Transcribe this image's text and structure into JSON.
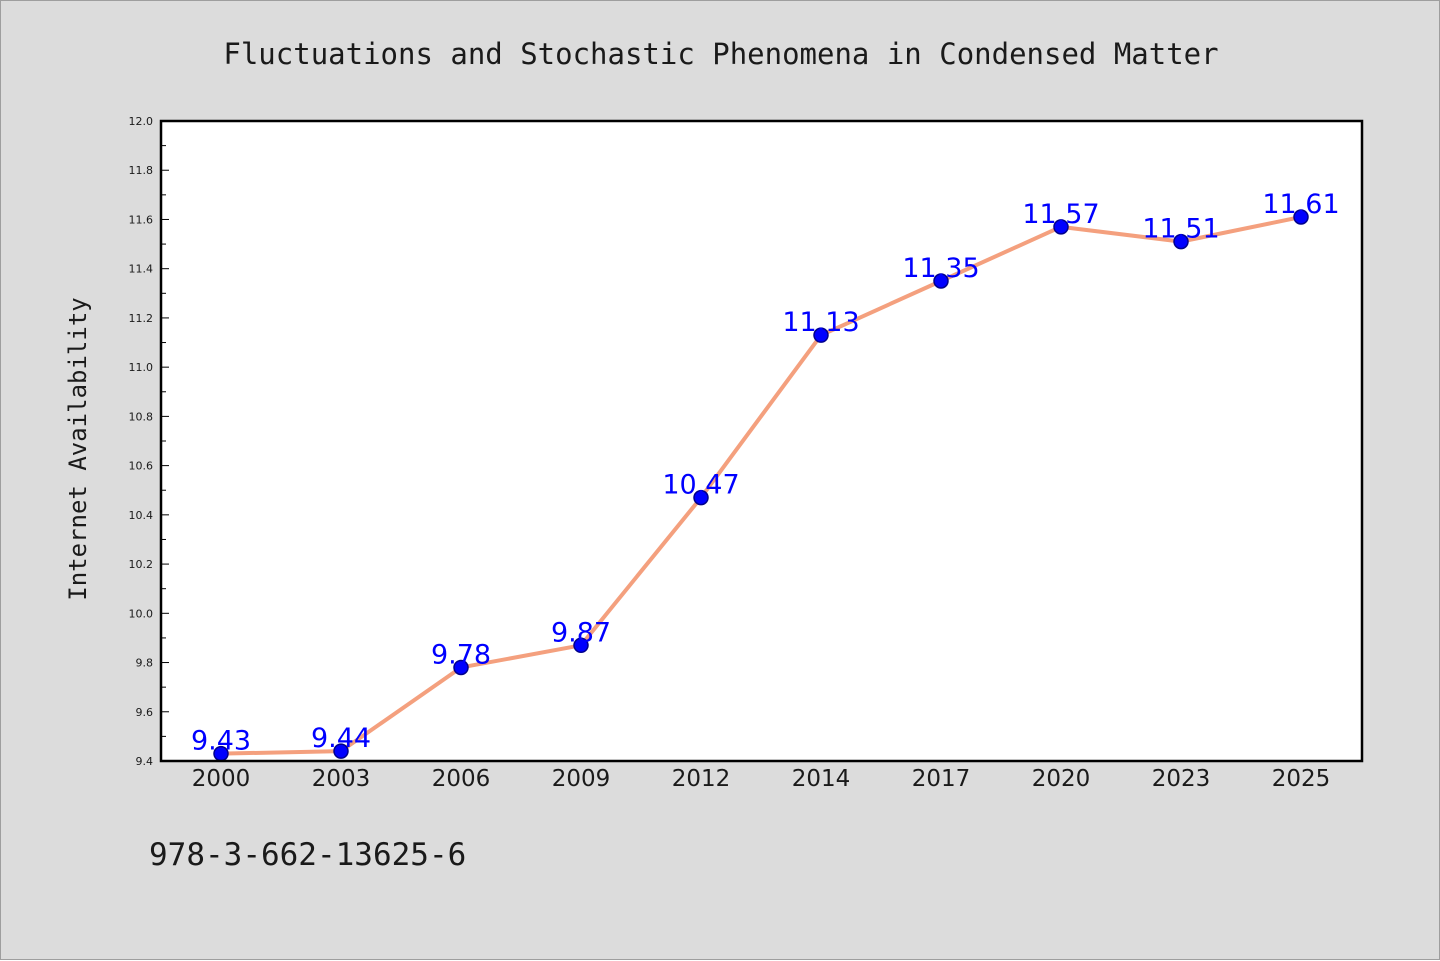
{
  "chart_data": {
    "type": "line",
    "title": "Fluctuations and Stochastic Phenomena in Condensed Matter",
    "ylabel": "Internet Availability",
    "xlabel": "",
    "categories": [
      "2000",
      "2003",
      "2006",
      "2009",
      "2012",
      "2014",
      "2017",
      "2020",
      "2023",
      "2025"
    ],
    "series": [
      {
        "values": [
          9.43,
          9.44,
          9.78,
          9.87,
          10.47,
          11.13,
          11.35,
          11.57,
          11.51,
          11.61
        ]
      }
    ],
    "data_labels": [
      "9.43",
      "9.44",
      "9.78",
      "9.87",
      "10.47",
      "11.13",
      "11.35",
      "11.57",
      "11.51",
      "11.61"
    ],
    "ylim": [
      9.4,
      12.0
    ],
    "y_ticks": [
      "9.4",
      "9.6",
      "9.8",
      "10.0",
      "10.2",
      "10.4",
      "10.6",
      "10.8",
      "11.0",
      "11.2",
      "11.4",
      "11.6",
      "11.8",
      "12.0"
    ],
    "grid": false,
    "legend": "none",
    "colors": {
      "line": "#f4a07e",
      "marker_fill": "#0000ff",
      "marker_edge": "#00008b",
      "data_label": "#0000ff",
      "figure_background": "#dcdcdc",
      "plot_background": "#ffffff"
    }
  },
  "footer": {
    "text": "978-3-662-13625-6"
  }
}
